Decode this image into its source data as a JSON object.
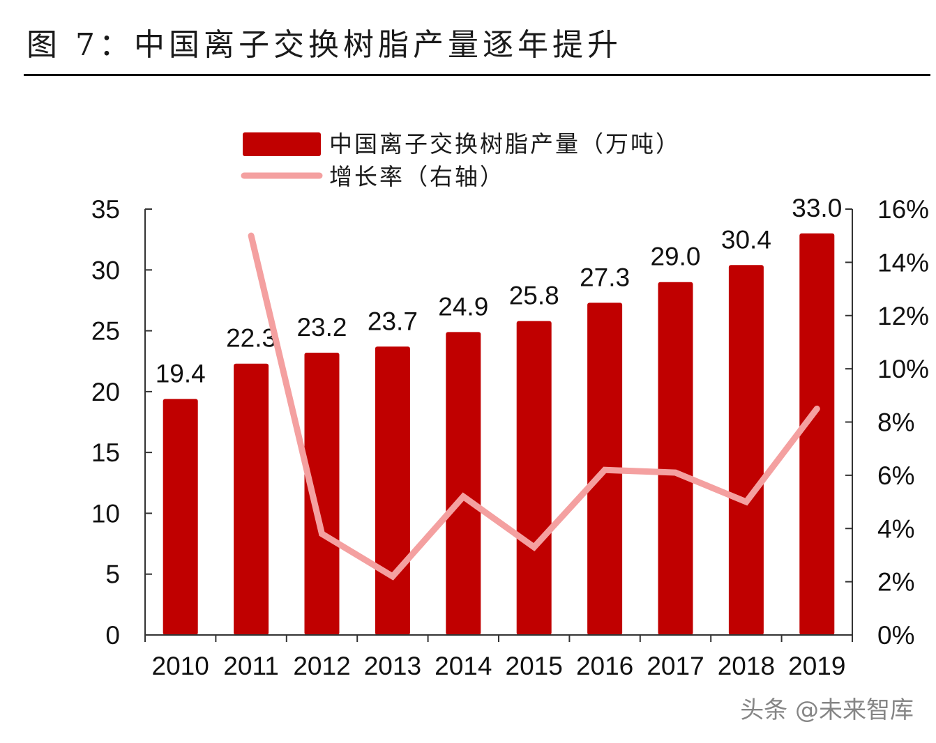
{
  "figure": {
    "title": "图 7：中国离子交换树脂产量逐年提升",
    "watermark": "头条 @未来智库"
  },
  "chart_data": {
    "type": "bar",
    "categories": [
      "2010",
      "2011",
      "2012",
      "2013",
      "2014",
      "2015",
      "2016",
      "2017",
      "2018",
      "2019"
    ],
    "series": [
      {
        "name": "中国离子交换树脂产量（万吨）",
        "type": "bar",
        "axis": "left",
        "color": "#c00000",
        "values": [
          19.4,
          22.3,
          23.2,
          23.7,
          24.9,
          25.8,
          27.3,
          29.0,
          30.4,
          33.0
        ],
        "data_labels": [
          "19.4",
          "22.3",
          "23.2",
          "23.7",
          "24.9",
          "25.8",
          "27.3",
          "29.0",
          "30.4",
          "33.0"
        ]
      },
      {
        "name": "增长率（右轴）",
        "type": "line",
        "axis": "right",
        "color": "#f4a0a0",
        "values": [
          null,
          15.0,
          3.8,
          2.2,
          5.2,
          3.3,
          6.2,
          6.1,
          5.0,
          8.5
        ]
      }
    ],
    "y_left": {
      "ylim": [
        0,
        35
      ],
      "ticks": [
        0,
        5,
        10,
        15,
        20,
        25,
        30,
        35
      ],
      "tick_labels": [
        "0",
        "5",
        "10",
        "15",
        "20",
        "25",
        "30",
        "35"
      ]
    },
    "y_right": {
      "ylim": [
        0,
        16
      ],
      "ticks": [
        0,
        2,
        4,
        6,
        8,
        10,
        12,
        14,
        16
      ],
      "tick_labels": [
        "0%",
        "2%",
        "4%",
        "6%",
        "8%",
        "10%",
        "12%",
        "14%",
        "16%"
      ]
    },
    "legend": {
      "position": "top-center",
      "entries": [
        "中国离子交换树脂产量（万吨）",
        "增长率（右轴）"
      ]
    },
    "grid": false
  }
}
